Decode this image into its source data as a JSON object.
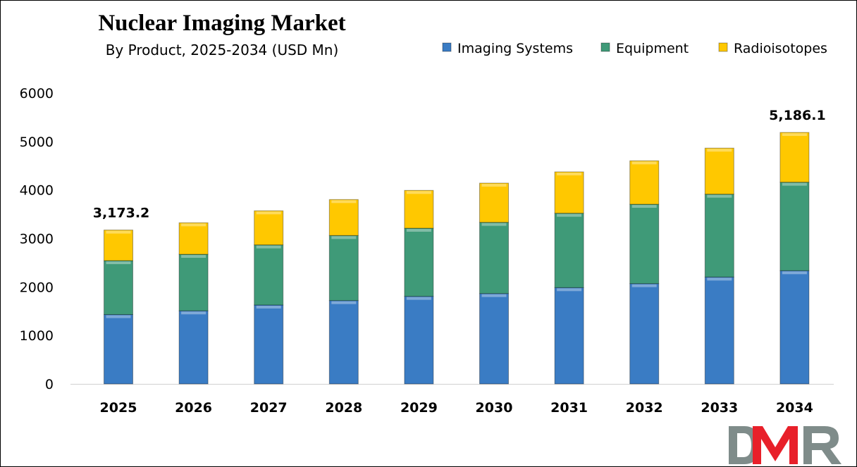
{
  "chart_data": {
    "type": "bar",
    "stacked": true,
    "title": "Nuclear Imaging Market",
    "subtitle": "By Product, 2025-2034 (USD Mn)",
    "categories": [
      "2025",
      "2026",
      "2027",
      "2028",
      "2029",
      "2030",
      "2031",
      "2032",
      "2033",
      "2034"
    ],
    "series": [
      {
        "name": "Imaging Systems",
        "color": "#3a7cc4",
        "values": [
          1430,
          1507,
          1627,
          1719,
          1806,
          1864,
          1986,
          2068,
          2204,
          2335
        ]
      },
      {
        "name": "Equipment",
        "color": "#3f9a78",
        "values": [
          1112,
          1166,
          1240,
          1342,
          1405,
          1468,
          1534,
          1637,
          1709,
          1825
        ]
      },
      {
        "name": "Radioisotopes",
        "color": "#ffc800",
        "values": [
          631.2,
          650,
          703,
          741,
          780,
          809,
          853,
          896,
          950,
          1026.1
        ]
      }
    ],
    "data_labels": [
      {
        "category": "2025",
        "text": "3,173.2"
      },
      {
        "category": "2034",
        "text": "5,186.1"
      }
    ],
    "ylim": [
      0,
      6000
    ],
    "yticks": [
      "0",
      "1000",
      "2000",
      "3000",
      "4000",
      "5000",
      "6000"
    ],
    "grid": false,
    "legend": "top-right"
  },
  "logo": {
    "text": "DMR"
  }
}
